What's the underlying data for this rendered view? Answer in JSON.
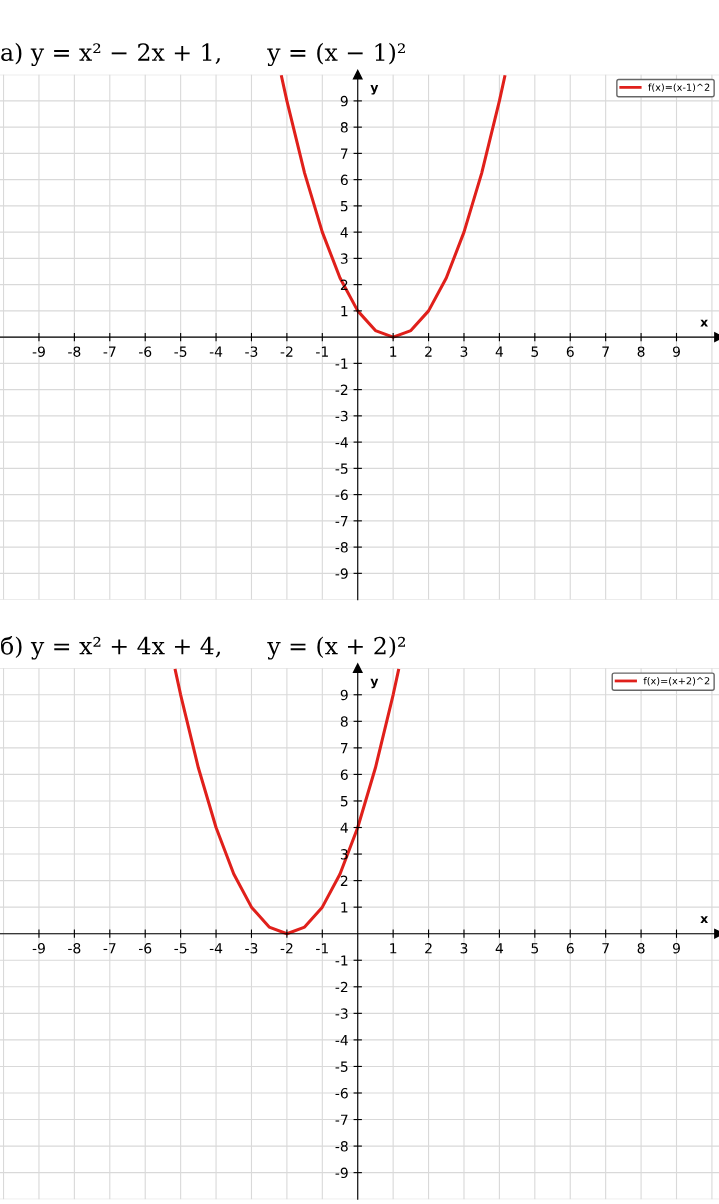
{
  "chart_data": [
    {
      "type": "line",
      "title": "а) y = x² − 2x + 1,      y = (x − 1)²",
      "xlabel": "x",
      "ylabel": "y",
      "x": [
        -2.15,
        -2,
        -1.5,
        -1,
        -0.5,
        0,
        0.5,
        1,
        1.5,
        2,
        2.5,
        3,
        3.5,
        4,
        4.15
      ],
      "series": [
        {
          "name": "f(x)=(x-1)^2",
          "color": "#e0201b",
          "values": [
            9.92,
            9,
            6.25,
            4,
            2.25,
            1,
            0.25,
            0,
            0.25,
            1,
            2.25,
            4,
            6.25,
            9,
            9.92
          ]
        }
      ],
      "xlim": [
        -10.1,
        10.2
      ],
      "ylim": [
        -10,
        10
      ],
      "xticks": [
        -9,
        -8,
        -7,
        -6,
        -5,
        -4,
        -3,
        -2,
        -1,
        1,
        2,
        3,
        4,
        5,
        6,
        7,
        8,
        9
      ],
      "yticks": [
        -9,
        -8,
        -7,
        -6,
        -5,
        -4,
        -3,
        -2,
        -1,
        1,
        2,
        3,
        4,
        5,
        6,
        7,
        8,
        9
      ],
      "grid": true,
      "legend": "top right",
      "marker": "none",
      "line_style": "solid"
    },
    {
      "type": "line",
      "title": "б) y = x² + 4x + 4,      y = (x + 2)²",
      "xlabel": "x",
      "ylabel": "y",
      "x": [
        -5.15,
        -5,
        -4.5,
        -4,
        -3.5,
        -3,
        -2.5,
        -2,
        -1.5,
        -1,
        -0.5,
        0,
        0.5,
        1,
        1.15
      ],
      "series": [
        {
          "name": "f(x)=(x+2)^2",
          "color": "#e0201b",
          "values": [
            9.92,
            9,
            6.25,
            4,
            2.25,
            1,
            0.25,
            0,
            0.25,
            1,
            2.25,
            4,
            6.25,
            9,
            9.92
          ]
        }
      ],
      "xlim": [
        -10.1,
        10.2
      ],
      "ylim": [
        -10,
        10
      ],
      "xticks": [
        -9,
        -8,
        -7,
        -6,
        -5,
        -4,
        -3,
        -2,
        -1,
        1,
        2,
        3,
        4,
        5,
        6,
        7,
        8,
        9
      ],
      "yticks": [
        -9,
        -8,
        -7,
        -6,
        -5,
        -4,
        -3,
        -2,
        -1,
        1,
        2,
        3,
        4,
        5,
        6,
        7,
        8,
        9
      ],
      "grid": true,
      "legend": "top right",
      "marker": "none",
      "line_style": "solid"
    }
  ]
}
